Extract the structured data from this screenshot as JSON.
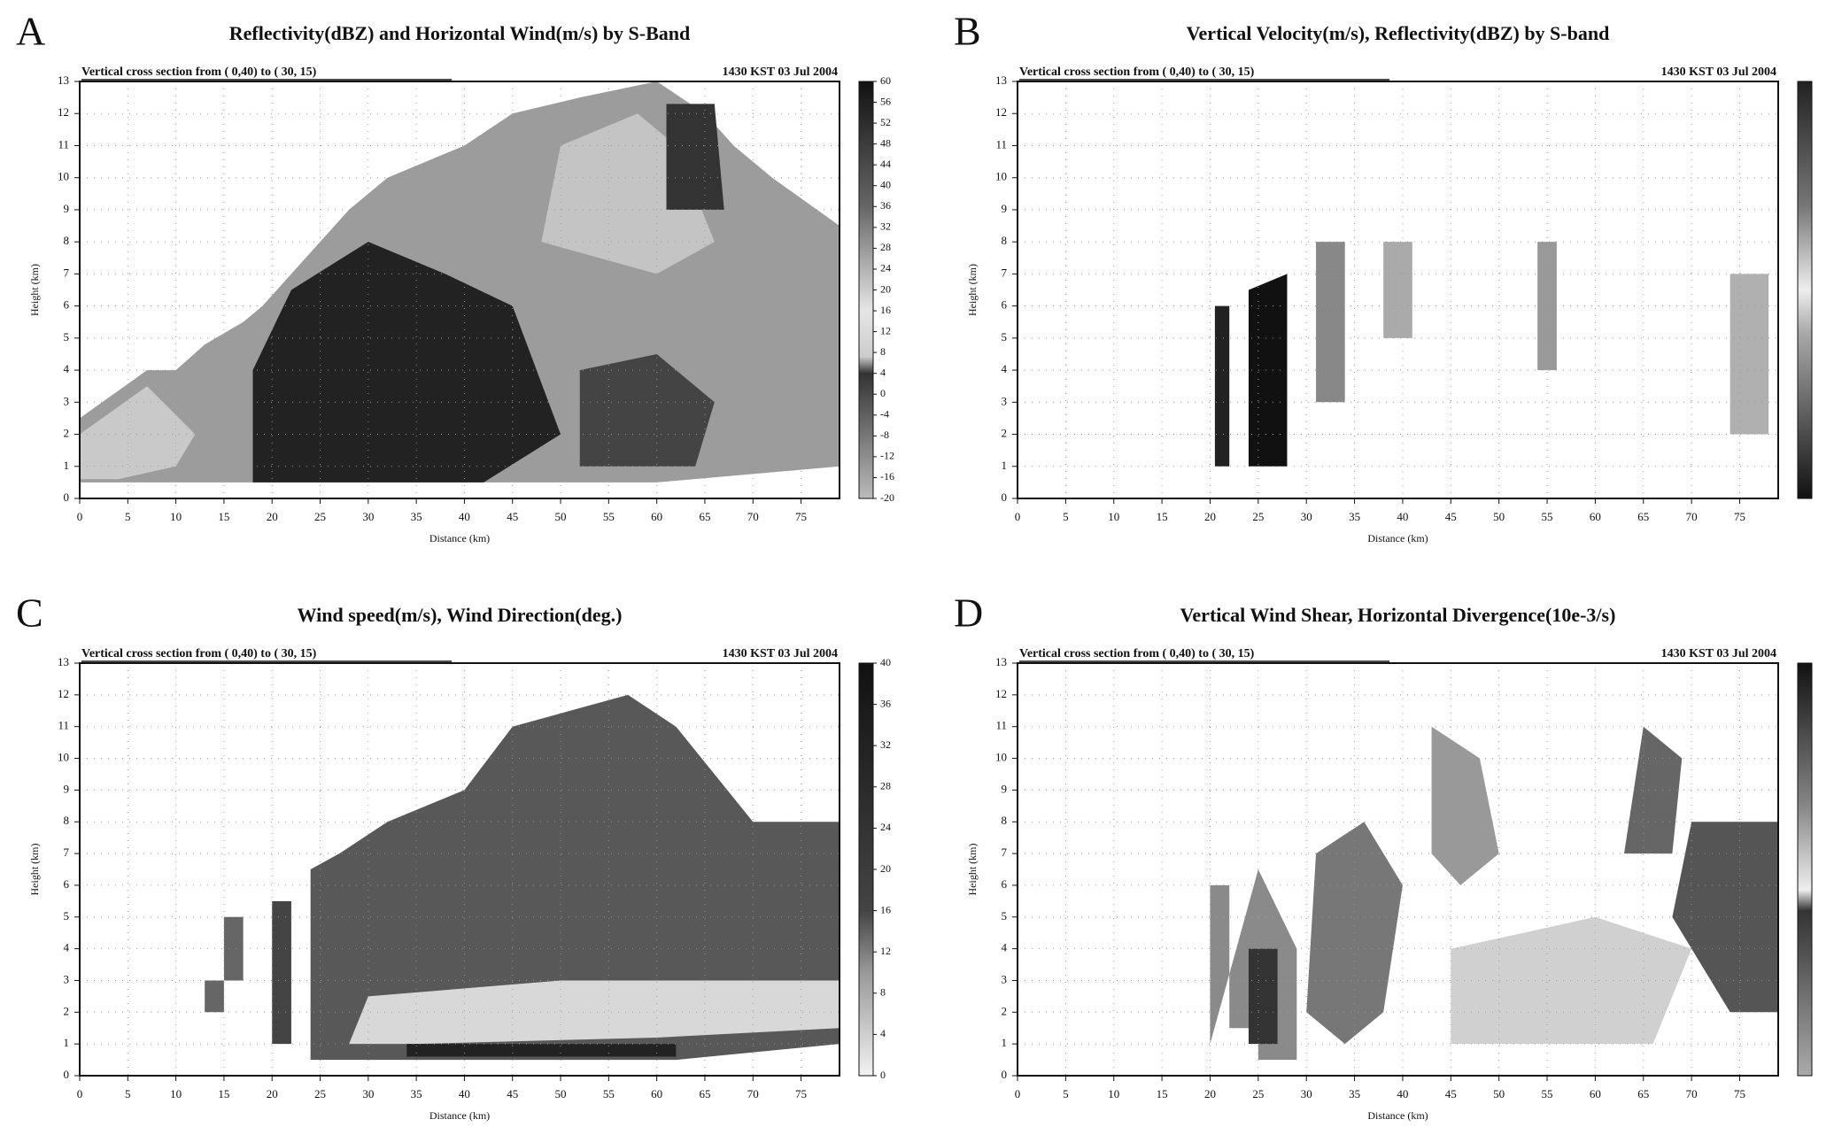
{
  "chart_data": [
    {
      "type": "heatmap",
      "panel_label": "A",
      "title": "Reflectivity(dBZ) and Horizontal Wind(m/s) by S-Band",
      "subtitle_left": "Vertical cross section from ( 0,40) to ( 30, 15)",
      "subtitle_right": "1430 KST 03 Jul 2004",
      "xlabel": "Distance (km)",
      "ylabel": "Height (km)",
      "xlim": [
        0,
        79
      ],
      "xticks": [
        0,
        5,
        10,
        15,
        20,
        25,
        30,
        35,
        40,
        45,
        50,
        55,
        60,
        65,
        70,
        75
      ],
      "ylim": [
        0,
        13
      ],
      "yticks": [
        0,
        1,
        2,
        3,
        4,
        5,
        6,
        7,
        8,
        9,
        10,
        11,
        12,
        13
      ],
      "grid": true,
      "clim": [
        -20,
        60
      ],
      "cticks": [
        60,
        56,
        52,
        48,
        44,
        40,
        36,
        32,
        28,
        24,
        20,
        16,
        12,
        8,
        4,
        0,
        -4,
        -8,
        -12,
        -16,
        -20
      ]
    },
    {
      "type": "contour",
      "panel_label": "B",
      "title": "Vertical Velocity(m/s), Reflectivity(dBZ) by S-band",
      "subtitle_left": "Vertical cross section from ( 0,40) to ( 30, 15)",
      "subtitle_right": "1430 KST 03 Jul 2004",
      "xlabel": "Distance (km)",
      "ylabel": "Height (km)",
      "xlim": [
        0,
        79
      ],
      "xticks": [
        0,
        5,
        10,
        15,
        20,
        25,
        30,
        35,
        40,
        45,
        50,
        55,
        60,
        65,
        70,
        75
      ],
      "ylim": [
        0,
        13
      ],
      "yticks": [
        0,
        1,
        2,
        3,
        4,
        5,
        6,
        7,
        8,
        9,
        10,
        11,
        12,
        13
      ],
      "grid": true
    },
    {
      "type": "heatmap",
      "panel_label": "C",
      "title": "Wind speed(m/s), Wind Direction(deg.)",
      "subtitle_left": "Vertical cross section from ( 0,40) to ( 30, 15)",
      "subtitle_right": "1430 KST 03 Jul 2004",
      "xlabel": "Distance (km)",
      "ylabel": "Height (km)",
      "xlim": [
        0,
        79
      ],
      "xticks": [
        0,
        5,
        10,
        15,
        20,
        25,
        30,
        35,
        40,
        45,
        50,
        55,
        60,
        65,
        70,
        75
      ],
      "ylim": [
        0,
        13
      ],
      "yticks": [
        0,
        1,
        2,
        3,
        4,
        5,
        6,
        7,
        8,
        9,
        10,
        11,
        12,
        13
      ],
      "grid": true,
      "clim": [
        0,
        40
      ],
      "cticks": [
        40,
        36,
        32,
        28,
        24,
        20,
        16,
        12,
        8,
        4,
        0
      ]
    },
    {
      "type": "contour",
      "panel_label": "D",
      "title": "Vertical Wind Shear, Horizontal Divergence(10e-3/s)",
      "subtitle_left": "Vertical cross section from ( 0,40) to ( 30, 15)",
      "subtitle_right": "1430 KST 03 Jul 2004",
      "xlabel": "Distance (km)",
      "ylabel": "Height (km)",
      "xlim": [
        0,
        79
      ],
      "xticks": [
        0,
        5,
        10,
        15,
        20,
        25,
        30,
        35,
        40,
        45,
        50,
        55,
        60,
        65,
        70,
        75
      ],
      "ylim": [
        0,
        13
      ],
      "yticks": [
        0,
        1,
        2,
        3,
        4,
        5,
        6,
        7,
        8,
        9,
        10,
        11,
        12,
        13
      ],
      "grid": true
    }
  ]
}
